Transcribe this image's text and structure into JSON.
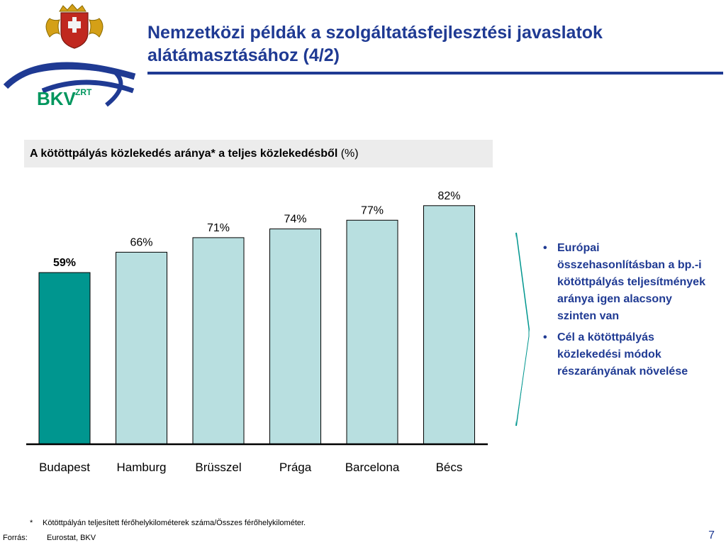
{
  "header": {
    "title_line1": "Nemzetközi példák a szolgáltatásfejlesztési javaslatok",
    "title_line2": "alátámasztásához (4/2)",
    "logo_text": "BKV",
    "logo_sup": "ZRT"
  },
  "chart_heading": {
    "bold": "A kötöttpályás közlekedés aránya* a teljes közlekedésből",
    "normal": " (%)"
  },
  "chart_data": {
    "type": "bar",
    "title": "A kötöttpályás közlekedés aránya* a teljes közlekedésből (%)",
    "categories": [
      "Budapest",
      "Hamburg",
      "Brüsszel",
      "Prága",
      "Barcelona",
      "Bécs"
    ],
    "values": [
      59,
      66,
      71,
      74,
      77,
      82
    ],
    "value_labels": [
      "59%",
      "66%",
      "71%",
      "74%",
      "77%",
      "82%"
    ],
    "unit": "%",
    "ylim": [
      0,
      100
    ],
    "grid": false,
    "legend": "none",
    "colors": {
      "highlight": "#00968f",
      "default": "#b8dfe0",
      "edge": "#000000"
    },
    "highlight_index": 0
  },
  "bullets": [
    "Európai összehasonlításban a bp.-i kötöttpályás teljesítmények aránya igen alacsony szinten van",
    "Cél a kötöttpályás közlekedési módok részarányának növelése"
  ],
  "footnote": {
    "marker": "*",
    "text": "Kötöttpályán teljesített férőhelykilométerek száma/Összes férőhelykilométer."
  },
  "source": {
    "label": "Forrás:",
    "text": "Eurostat, BKV"
  },
  "page_number": "7",
  "colors": {
    "title": "#1f3a93",
    "logo_green": "#00965e",
    "logo_blue": "#1f3a93",
    "arrow": "#00968f"
  }
}
